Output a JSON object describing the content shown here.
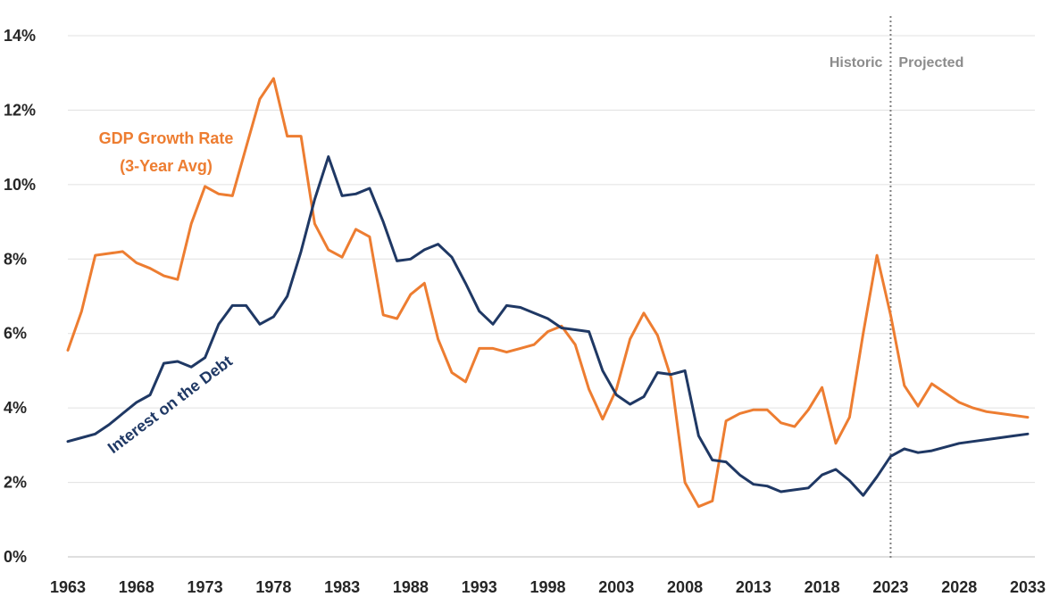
{
  "chart_data": {
    "type": "line",
    "title": "",
    "xlabel": "",
    "ylabel": "",
    "xlim": [
      1963,
      2033
    ],
    "ylim": [
      0,
      14
    ],
    "grid": true,
    "x_ticks": [
      "1963",
      "1968",
      "1973",
      "1978",
      "1983",
      "1988",
      "1993",
      "1998",
      "2003",
      "2008",
      "2013",
      "2018",
      "2023",
      "2028",
      "2033"
    ],
    "y_ticks": [
      "0%",
      "2%",
      "4%",
      "6%",
      "8%",
      "10%",
      "12%",
      "14%"
    ],
    "divider_year": 2023,
    "period_labels": {
      "historic": "Historic",
      "projected": "Projected"
    },
    "series": [
      {
        "name": "GDP Growth Rate (3-Year Avg)",
        "label_line1": "GDP Growth Rate",
        "label_line2": "(3-Year Avg)",
        "color": "#ED7D31",
        "x": [
          1963,
          1964,
          1965,
          1966,
          1967,
          1968,
          1969,
          1970,
          1971,
          1972,
          1973,
          1974,
          1975,
          1976,
          1977,
          1978,
          1979,
          1980,
          1981,
          1982,
          1983,
          1984,
          1985,
          1986,
          1987,
          1988,
          1989,
          1990,
          1991,
          1992,
          1993,
          1994,
          1995,
          1996,
          1997,
          1998,
          1999,
          2000,
          2001,
          2002,
          2003,
          2004,
          2005,
          2006,
          2007,
          2008,
          2009,
          2010,
          2011,
          2012,
          2013,
          2014,
          2015,
          2016,
          2017,
          2018,
          2019,
          2020,
          2021,
          2022,
          2023,
          2024,
          2025,
          2026,
          2027,
          2028,
          2029,
          2030,
          2031,
          2032,
          2033
        ],
        "values": [
          5.55,
          6.6,
          8.1,
          8.15,
          8.2,
          7.9,
          7.75,
          7.55,
          7.45,
          8.95,
          9.95,
          9.75,
          9.7,
          11.0,
          12.3,
          12.85,
          11.3,
          11.3,
          8.95,
          8.25,
          8.05,
          8.8,
          8.6,
          6.5,
          6.4,
          7.05,
          7.35,
          5.85,
          4.95,
          4.7,
          5.6,
          5.6,
          5.5,
          5.6,
          5.7,
          6.05,
          6.2,
          5.7,
          4.5,
          3.7,
          4.5,
          5.85,
          6.55,
          5.95,
          4.8,
          2.0,
          1.35,
          1.5,
          3.65,
          3.85,
          3.95,
          3.95,
          3.6,
          3.5,
          3.95,
          4.55,
          3.05,
          3.75,
          6.0,
          8.1,
          6.5,
          4.6,
          4.05,
          4.65,
          4.4,
          4.15,
          4.0,
          3.9,
          3.85,
          3.8,
          3.75
        ]
      },
      {
        "name": "Interest on the Debt",
        "color": "#1F3864",
        "x": [
          1963,
          1964,
          1965,
          1966,
          1967,
          1968,
          1969,
          1970,
          1971,
          1972,
          1973,
          1974,
          1975,
          1976,
          1977,
          1978,
          1979,
          1980,
          1981,
          1982,
          1983,
          1984,
          1985,
          1986,
          1987,
          1988,
          1989,
          1990,
          1991,
          1992,
          1993,
          1994,
          1995,
          1996,
          1997,
          1998,
          1999,
          2000,
          2001,
          2002,
          2003,
          2004,
          2005,
          2006,
          2007,
          2008,
          2009,
          2010,
          2011,
          2012,
          2013,
          2014,
          2015,
          2016,
          2017,
          2018,
          2019,
          2020,
          2021,
          2022,
          2023,
          2024,
          2025,
          2026,
          2027,
          2028,
          2029,
          2030,
          2031,
          2032,
          2033
        ],
        "values": [
          3.1,
          3.2,
          3.3,
          3.55,
          3.85,
          4.15,
          4.35,
          5.2,
          5.25,
          5.1,
          5.35,
          6.25,
          6.75,
          6.75,
          6.25,
          6.45,
          7.0,
          8.2,
          9.6,
          10.75,
          9.7,
          9.75,
          9.9,
          9.0,
          7.95,
          8.0,
          8.25,
          8.4,
          8.05,
          7.35,
          6.6,
          6.25,
          6.75,
          6.7,
          6.55,
          6.4,
          6.15,
          6.1,
          6.05,
          5.0,
          4.35,
          4.1,
          4.3,
          4.95,
          4.9,
          5.0,
          3.25,
          2.6,
          2.55,
          2.2,
          1.95,
          1.9,
          1.75,
          1.8,
          1.85,
          2.2,
          2.35,
          2.05,
          1.65,
          2.15,
          2.7,
          2.9,
          2.8,
          2.85,
          2.95,
          3.05,
          3.1,
          3.15,
          3.2,
          3.25,
          3.3
        ]
      }
    ]
  }
}
